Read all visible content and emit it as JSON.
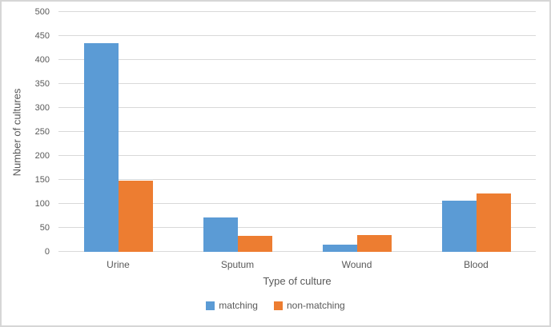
{
  "chart_data": {
    "type": "bar",
    "title": "",
    "categories": [
      "Urine",
      "Sputum",
      "Wound",
      "Blood"
    ],
    "series": [
      {
        "name": "matching",
        "color": "#5B9BD5",
        "values": [
          435,
          72,
          15,
          107
        ]
      },
      {
        "name": "non-matching",
        "color": "#ED7D31",
        "values": [
          149,
          33,
          35,
          121
        ]
      }
    ],
    "xlabel": "Type of culture",
    "ylabel": "Number of cultures",
    "ylim": [
      0,
      500
    ],
    "ytick_step": 50,
    "yticks": [
      0,
      50,
      100,
      150,
      200,
      250,
      300,
      350,
      400,
      450,
      500
    ],
    "grid": true,
    "legend_position": "bottom"
  },
  "colors": {
    "bar_matching": "#5B9BD5",
    "bar_non_matching": "#ED7D31",
    "text": "#595959",
    "gridline": "#D9D9D9",
    "frame_border": "#D6D6D6",
    "background": "#FFFFFF"
  }
}
